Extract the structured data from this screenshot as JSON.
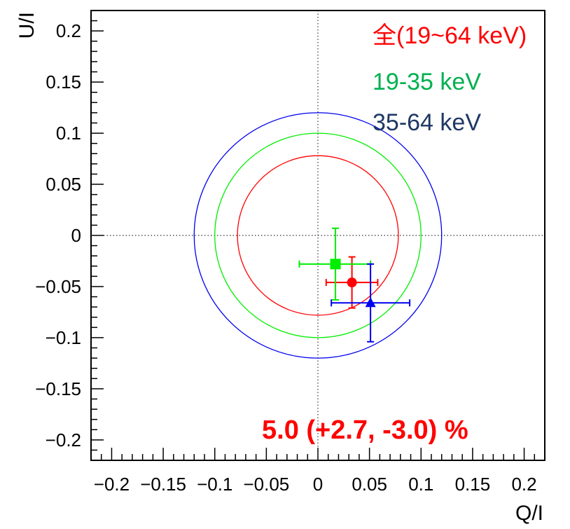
{
  "chart_data": {
    "type": "scatter",
    "title": "",
    "xlabel": "Q/I",
    "ylabel": "U/I",
    "xlim": [
      -0.22,
      0.22
    ],
    "ylim": [
      -0.22,
      0.22
    ],
    "xticks": [
      "−0.2",
      "−0.15",
      "−0.1",
      "−0.05",
      "0",
      "0.05",
      "0.1",
      "0.15",
      "0.2"
    ],
    "yticks": [
      "−0.2",
      "−0.15",
      "−0.1",
      "−0.05",
      "0",
      "0.05",
      "0.1",
      "0.15",
      "0.2"
    ],
    "grid": false,
    "reference_lines": {
      "x": 0,
      "y": 0,
      "style": "dotted"
    },
    "legend": {
      "placement": "top-right",
      "entries": [
        {
          "label": "全(19~64 keV)",
          "color": "#ff0000"
        },
        {
          "label": "19-35 keV",
          "color": "#00b050"
        },
        {
          "label": "35-64 keV",
          "color": "#1f3864"
        }
      ]
    },
    "series": [
      {
        "marker": "circle",
        "color": "#ff0000",
        "x": 0.033,
        "y": -0.046,
        "xerr": [
          0.025,
          0.025
        ],
        "yerr": [
          0.025,
          0.025
        ],
        "circle_radius": 0.078
      },
      {
        "marker": "square",
        "color": "#00ee00",
        "x": 0.017,
        "y": -0.028,
        "xerr": [
          0.035,
          0.034
        ],
        "yerr": [
          0.035,
          0.035
        ],
        "circle_radius": 0.1
      },
      {
        "marker": "triangle",
        "color": "#0000ee",
        "x": 0.051,
        "y": -0.066,
        "xerr": [
          0.038,
          0.038
        ],
        "yerr": [
          0.038,
          0.038
        ],
        "circle_radius": 0.12
      }
    ],
    "annotation": {
      "text": "5.0 (+2.7, -3.0) %",
      "color": "#ff0000"
    }
  }
}
